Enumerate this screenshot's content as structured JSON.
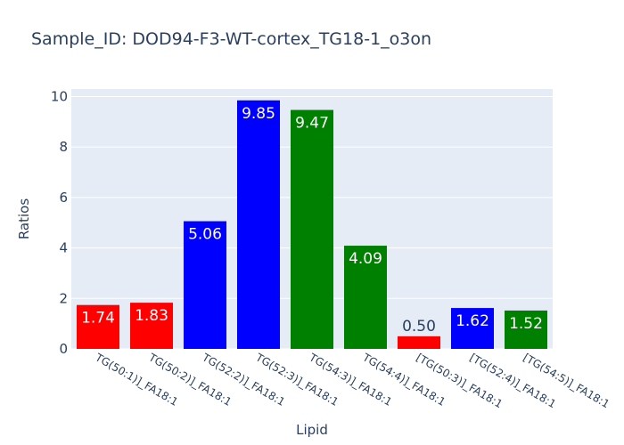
{
  "chart_data": {
    "type": "bar",
    "title": "Sample_ID: DOD94-F3-WT-cortex_TG18-1_o3on",
    "xlabel": "Lipid",
    "ylabel": "Ratios",
    "ylim": [
      0,
      10.3
    ],
    "yticks": [
      0,
      2,
      4,
      6,
      8,
      10
    ],
    "grid": true,
    "categories": [
      "TG(50:1)]_FA18:1",
      "TG(50:2)]_FA18:1",
      "TG(52:2)]_FA18:1",
      "TG(52:3)]_FA18:1",
      "TG(54:3)]_FA18:1",
      "TG(54:4)]_FA18:1",
      "[TG(50:3)]_FA18:1",
      "[TG(52:4)]_FA18:1",
      "[TG(54:5)]_FA18:1"
    ],
    "values": [
      1.74,
      1.83,
      5.06,
      9.85,
      9.47,
      4.09,
      0.5,
      1.62,
      1.52
    ],
    "labels": [
      "1.74",
      "1.83",
      "5.06",
      "9.85",
      "9.47",
      "4.09",
      "0.50",
      "1.62",
      "1.52"
    ],
    "colors": [
      "#ff0000",
      "#ff0000",
      "#0000ff",
      "#0000ff",
      "#008000",
      "#008000",
      "#ff0000",
      "#0000ff",
      "#008000"
    ],
    "plot_background": "#e5ecf6",
    "gridline_color": "#ffffff",
    "text_color": "#2a3f5f"
  }
}
